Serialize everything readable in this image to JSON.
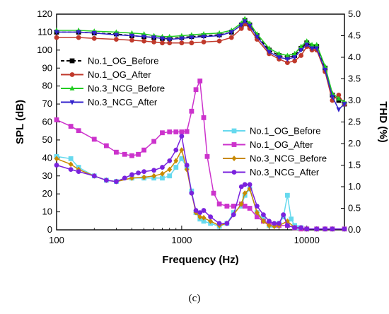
{
  "panel_label": "(c)",
  "chart_data": {
    "type": "line",
    "xlabel": "Frequency (Hz)",
    "ylabel": "SPL (dB)",
    "y2label": "THD (%)",
    "xscale": "log",
    "xlim": [
      100,
      20000
    ],
    "ylim": [
      0,
      120
    ],
    "y2lim": [
      0,
      5.0
    ],
    "x_ticks": [
      "100",
      "1000",
      "10000"
    ],
    "y_ticks": [
      "0",
      "10",
      "20",
      "30",
      "40",
      "50",
      "60",
      "70",
      "80",
      "90",
      "100",
      "110",
      "120"
    ],
    "y2_ticks": [
      "0.0",
      "0.5",
      "1.0",
      "1.5",
      "2.0",
      "2.5",
      "3.0",
      "3.5",
      "4.0",
      "4.5",
      "5.0"
    ],
    "legend_spl": {
      "placement": "top-left",
      "items": [
        "No.1_OG_Before",
        "No.1_OG_After",
        "No.3_NCG_Before",
        "No.3_NCG_After"
      ]
    },
    "legend_thd": {
      "placement": "center-right",
      "items": [
        "No.1_OG_Before",
        "No.1_OG_After",
        "No.3_NCG_Before",
        "No.3_NCG_After"
      ]
    },
    "series": [
      {
        "name": "No.1_OG_Before",
        "axis": "left",
        "color": "#000000",
        "marker": "square",
        "dash": true,
        "x": [
          100,
          150,
          200,
          300,
          400,
          500,
          600,
          700,
          800,
          1000,
          1200,
          1500,
          2000,
          2500,
          3000,
          3200,
          3500,
          4000,
          5000,
          6000,
          7000,
          8000,
          9000,
          10000,
          11000,
          12000,
          14000,
          16000,
          18000,
          20000
        ],
        "y": [
          110,
          110,
          109.5,
          109,
          108,
          107.5,
          107,
          106.5,
          106.5,
          107,
          107.5,
          108,
          108.5,
          110,
          114,
          116.5,
          114,
          108,
          100,
          97,
          96,
          97,
          101,
          104,
          102,
          102,
          90,
          75,
          72,
          70
        ]
      },
      {
        "name": "No.1_OG_After",
        "axis": "left",
        "color": "#c0392b",
        "marker": "circle",
        "x": [
          100,
          150,
          200,
          300,
          400,
          500,
          600,
          700,
          800,
          1000,
          1200,
          1500,
          2000,
          2500,
          3000,
          3200,
          3500,
          4000,
          5000,
          6000,
          7000,
          8000,
          9000,
          10000,
          11000,
          12000,
          14000,
          16000,
          18000,
          20000
        ],
        "y": [
          107,
          107,
          106.5,
          106,
          105.5,
          105,
          104.5,
          104,
          104,
          104,
          104,
          104.5,
          105,
          107,
          112,
          114.5,
          112,
          106,
          98,
          95,
          93,
          94,
          97,
          102,
          100,
          100,
          88,
          72,
          75,
          70
        ]
      },
      {
        "name": "No.3_NCG_Before",
        "axis": "left",
        "color": "#22cc22",
        "marker": "triangle-up",
        "x": [
          100,
          150,
          200,
          300,
          400,
          500,
          600,
          700,
          800,
          1000,
          1200,
          1500,
          2000,
          2500,
          3000,
          3200,
          3500,
          4000,
          5000,
          6000,
          7000,
          8000,
          9000,
          10000,
          11000,
          12000,
          14000,
          16000,
          18000,
          20000
        ],
        "y": [
          111,
          111,
          110.5,
          110,
          109.5,
          109,
          108,
          107.5,
          107.5,
          108,
          108.5,
          109,
          109.5,
          111,
          115,
          117.5,
          115,
          109,
          101,
          98,
          97,
          98,
          102,
          105,
          103,
          103,
          91,
          76,
          73,
          71
        ]
      },
      {
        "name": "No.3_NCG_After",
        "axis": "left",
        "color": "#3322cc",
        "marker": "triangle-down",
        "x": [
          100,
          150,
          200,
          300,
          400,
          500,
          600,
          700,
          800,
          1000,
          1200,
          1500,
          2000,
          2500,
          3000,
          3200,
          3500,
          4000,
          5000,
          6000,
          7000,
          8000,
          9000,
          10000,
          11000,
          12000,
          14000,
          16000,
          18000,
          20000
        ],
        "y": [
          110,
          110,
          109.5,
          108.5,
          108,
          107.5,
          107,
          106.5,
          106,
          106.5,
          107,
          107.5,
          108,
          110,
          114,
          116,
          113.5,
          107.5,
          99,
          96,
          95,
          96,
          100,
          103,
          101,
          101,
          89,
          74,
          67,
          70
        ]
      },
      {
        "name": "No.1_OG_Before",
        "axis": "right",
        "color": "#66d9ee",
        "marker": "square",
        "x": [
          100,
          130,
          150,
          200,
          250,
          300,
          400,
          500,
          600,
          700,
          800,
          900,
          1000,
          1100,
          1200,
          1300,
          1400,
          1500,
          1700,
          2000,
          2300,
          2600,
          3000,
          3200,
          3500,
          4000,
          4500,
          5000,
          5500,
          6000,
          6500,
          7000,
          7500,
          8000,
          8500,
          9000,
          10000,
          12000,
          14000,
          16000,
          20000
        ],
        "y": [
          1.7,
          1.65,
          1.45,
          1.25,
          1.15,
          1.12,
          1.2,
          1.2,
          1.2,
          1.2,
          1.25,
          1.45,
          1.65,
          1.45,
          0.9,
          0.4,
          0.25,
          0.2,
          0.15,
          0.08,
          0.15,
          0.4,
          0.55,
          0.8,
          0.95,
          0.4,
          0.25,
          0.1,
          0.1,
          0.15,
          0.3,
          0.8,
          0.25,
          0.1,
          0.05,
          0.05,
          0.02,
          0.02,
          0.02,
          0.02,
          0.02
        ]
      },
      {
        "name": "No.1_OG_After",
        "axis": "right",
        "color": "#cc33cc",
        "marker": "square",
        "x": [
          100,
          130,
          150,
          200,
          250,
          300,
          350,
          400,
          450,
          500,
          600,
          700,
          800,
          900,
          1000,
          1100,
          1200,
          1300,
          1400,
          1500,
          1600,
          1800,
          2000,
          2300,
          2600,
          3000,
          3200,
          3500,
          4000,
          4500,
          5000,
          6000,
          7000,
          8000,
          9000,
          10000,
          12000,
          14000,
          16000,
          20000
        ],
        "y": [
          2.55,
          2.4,
          2.3,
          2.1,
          1.95,
          1.8,
          1.75,
          1.72,
          1.75,
          1.85,
          2.05,
          2.25,
          2.27,
          2.27,
          2.27,
          2.28,
          2.75,
          3.25,
          3.45,
          2.6,
          1.7,
          0.85,
          0.6,
          0.55,
          0.55,
          0.6,
          0.55,
          0.5,
          0.3,
          0.2,
          0.15,
          0.1,
          0.1,
          0.05,
          0.02,
          0.02,
          0.02,
          0.02,
          0.02,
          0.02
        ]
      },
      {
        "name": "No.3_NCG_Before",
        "axis": "right",
        "color": "#c88a00",
        "marker": "diamond",
        "x": [
          100,
          130,
          150,
          200,
          250,
          300,
          400,
          500,
          600,
          700,
          800,
          900,
          1000,
          1100,
          1200,
          1300,
          1400,
          1500,
          1700,
          2000,
          2300,
          2600,
          3000,
          3200,
          3500,
          4000,
          4500,
          5000,
          5500,
          6000,
          7000,
          8000,
          9000,
          10000,
          12000,
          14000,
          16000,
          20000
        ],
        "y": [
          1.65,
          1.52,
          1.4,
          1.25,
          1.15,
          1.12,
          1.2,
          1.22,
          1.25,
          1.3,
          1.4,
          1.6,
          1.85,
          1.4,
          0.85,
          0.4,
          0.3,
          0.28,
          0.2,
          0.1,
          0.15,
          0.35,
          0.6,
          0.85,
          0.95,
          0.4,
          0.2,
          0.1,
          0.08,
          0.1,
          0.2,
          0.05,
          0.05,
          0.02,
          0.02,
          0.02,
          0.02,
          0.02
        ]
      },
      {
        "name": "No.3_NCG_After",
        "axis": "right",
        "color": "#7a22dd",
        "marker": "circle",
        "x": [
          100,
          130,
          150,
          200,
          250,
          300,
          350,
          400,
          450,
          500,
          600,
          700,
          800,
          900,
          1000,
          1100,
          1200,
          1300,
          1400,
          1500,
          1700,
          2000,
          2300,
          2600,
          3000,
          3200,
          3500,
          4000,
          4500,
          5000,
          5500,
          6000,
          6500,
          7000,
          8000,
          9000,
          10000,
          12000,
          14000,
          16000,
          20000
        ],
        "y": [
          1.5,
          1.4,
          1.35,
          1.25,
          1.15,
          1.12,
          1.2,
          1.28,
          1.32,
          1.35,
          1.38,
          1.45,
          1.6,
          1.85,
          2.17,
          1.5,
          0.85,
          0.45,
          0.4,
          0.45,
          0.3,
          0.15,
          0.15,
          0.35,
          1.0,
          1.05,
          1.05,
          0.55,
          0.35,
          0.2,
          0.15,
          0.15,
          0.35,
          0.1,
          0.05,
          0.05,
          0.02,
          0.02,
          0.02,
          0.02,
          0.02
        ]
      }
    ]
  }
}
